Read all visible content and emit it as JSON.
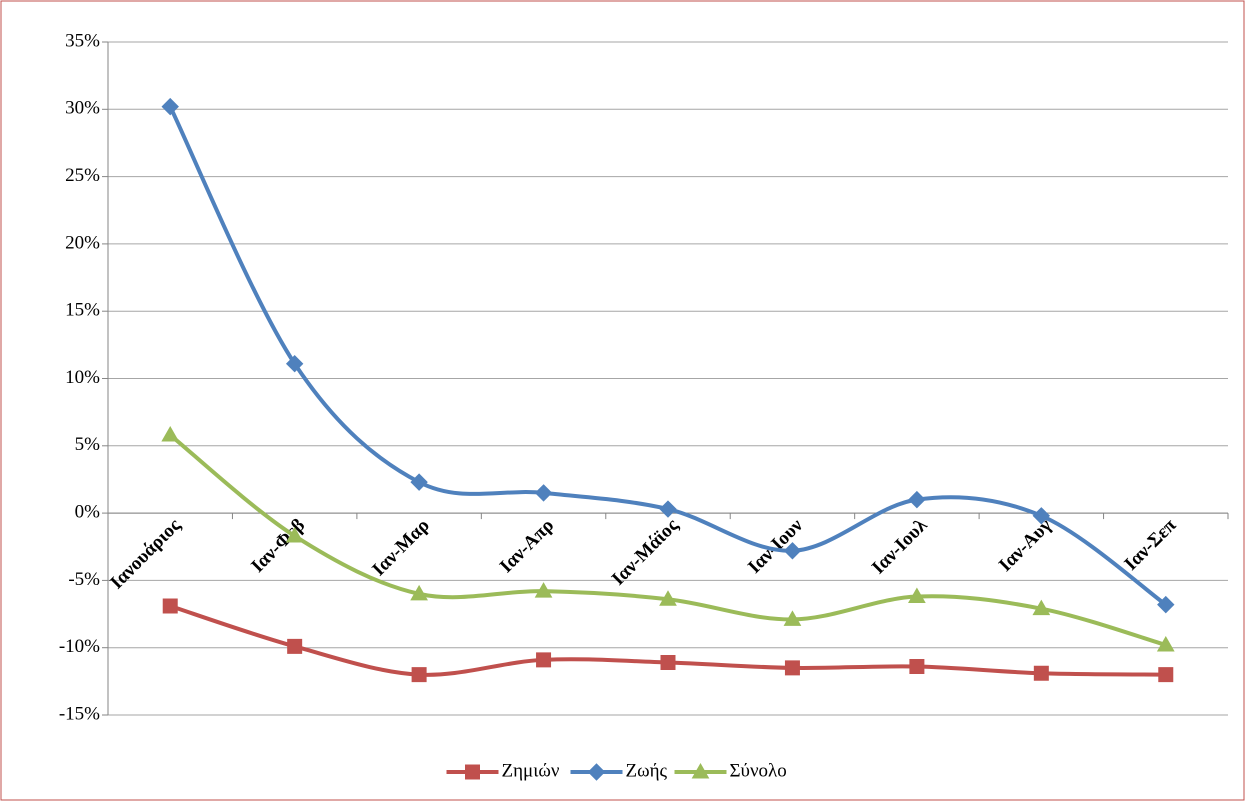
{
  "chart_data": {
    "type": "line",
    "categories": [
      "Ιανουάριος",
      "Ιαν-Φεβ",
      "Ιαν-Μαρ",
      "Ιαν-Απρ",
      "Ιαν-Μάϊος",
      "Ιαν-Ιουν",
      "Ιαν-Ιουλ",
      "Ιαν-Αυγ",
      "Ιαν-Σεπ"
    ],
    "series": [
      {
        "name": "Ζημιών",
        "color": "#c0504d",
        "marker": "square",
        "values": [
          -6.9,
          -9.9,
          -12.0,
          -10.9,
          -11.1,
          -11.5,
          -11.4,
          -11.9,
          -12.0
        ]
      },
      {
        "name": "Ζωής",
        "color": "#4f81bd",
        "marker": "diamond",
        "values": [
          30.2,
          11.1,
          2.3,
          1.5,
          0.3,
          -2.8,
          1.0,
          -0.2,
          -6.8
        ]
      },
      {
        "name": "Σύνολο",
        "color": "#9bbb59",
        "marker": "triangle",
        "values": [
          5.8,
          -1.7,
          -6.0,
          -5.8,
          -6.4,
          -7.9,
          -6.2,
          -7.1,
          -9.8
        ]
      }
    ],
    "ylim": [
      -15,
      35
    ],
    "yticks": [
      {
        "value": -15,
        "label": "-15%"
      },
      {
        "value": -10,
        "label": "-10%"
      },
      {
        "value": -5,
        "label": "-5%"
      },
      {
        "value": 0,
        "label": "0%"
      },
      {
        "value": 5,
        "label": "5%"
      },
      {
        "value": 10,
        "label": "10%"
      },
      {
        "value": 15,
        "label": "15%"
      },
      {
        "value": 20,
        "label": "20%"
      },
      {
        "value": 25,
        "label": "25%"
      },
      {
        "value": 30,
        "label": "30%"
      },
      {
        "value": 35,
        "label": "35%"
      }
    ],
    "grid": true,
    "smooth": true,
    "legend": "bottom"
  }
}
